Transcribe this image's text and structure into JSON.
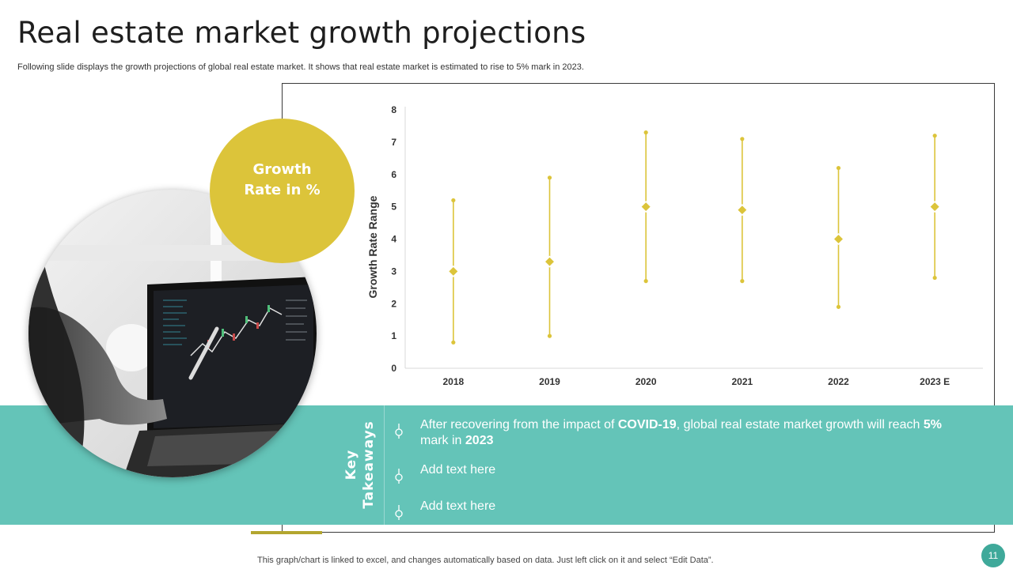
{
  "slide": {
    "title": "Real estate market growth projections",
    "subtitle": "Following slide displays the growth projections of global real estate market. It shows that real estate market is estimated to rise to 5% mark in 2023.",
    "badge_line1": "Growth",
    "badge_line2": "Rate in %",
    "footer_note": "This graph/chart is linked to excel,  and changes automatically based on data. Just left click on it and select “Edit Data”.",
    "page_number": "11"
  },
  "takeaways": {
    "label_line1": "Key",
    "label_line2": "Takeaways",
    "item1": {
      "t1": "After recovering from the impact of ",
      "b1": "COVID-19",
      "t2": ", global real estate market growth will reach ",
      "b2": "5%",
      "t3": " mark in ",
      "b3": "2023"
    },
    "item2": "Add text here",
    "item3": "Add text here"
  },
  "colors": {
    "accent": "#dcc43a",
    "teal_band": "#64c4b8",
    "page_badge": "#3fa99a"
  },
  "chart_data": {
    "type": "high-low-midpoint",
    "ylabel": "Growth Rate Range",
    "xlabel": "",
    "categories": [
      "2018",
      "2019",
      "2020",
      "2021",
      "2022",
      "2023 E"
    ],
    "series": [
      {
        "name": "",
        "role": "high",
        "values": [
          5.2,
          5.9,
          7.3,
          7.1,
          6.2,
          7.2
        ]
      },
      {
        "name": "",
        "role": "low",
        "values": [
          0.8,
          1.0,
          2.7,
          2.7,
          1.9,
          2.8
        ]
      },
      {
        "name": "",
        "role": "mid",
        "values": [
          3.0,
          3.3,
          5.0,
          4.9,
          4.0,
          5.0
        ]
      }
    ],
    "ylim": [
      0,
      8
    ],
    "yticks": [
      "0",
      "1",
      "2",
      "3",
      "4",
      "5",
      "6",
      "7",
      "8"
    ],
    "grid": false,
    "legend": "none"
  }
}
